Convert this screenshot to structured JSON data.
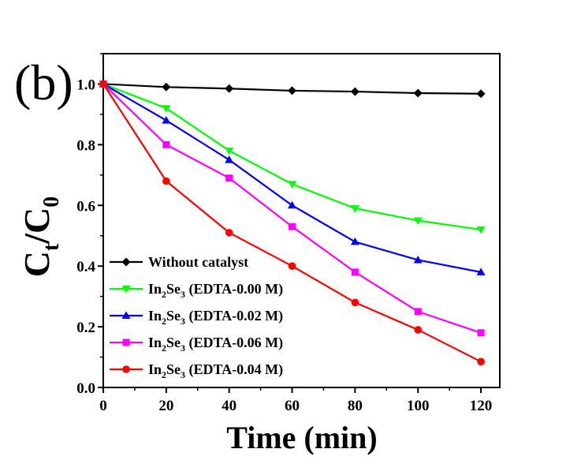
{
  "chart_data": {
    "type": "line",
    "panel_label": "(b)",
    "xlabel": "Time (min)",
    "ylabel": {
      "main": "C",
      "sub1": "t",
      "slash": "/",
      "main2": "C",
      "sub2": "0"
    },
    "xlim": [
      0,
      126
    ],
    "ylim": [
      0,
      1.1
    ],
    "xticks": [
      0,
      20,
      40,
      60,
      80,
      100,
      120
    ],
    "yticks": [
      0.0,
      0.2,
      0.4,
      0.6,
      0.8,
      1.0
    ],
    "xtick_labels": [
      "0",
      "20",
      "40",
      "60",
      "80",
      "100",
      "120"
    ],
    "ytick_labels": [
      "0.0",
      "0.2",
      "0.4",
      "0.6",
      "0.8",
      "1.0"
    ],
    "x": [
      0,
      20,
      40,
      60,
      80,
      100,
      120
    ],
    "legend_position": "lower-left",
    "series": [
      {
        "name": "Without catalyst",
        "color": "#000000",
        "marker": "diamond",
        "values": [
          1.0,
          0.99,
          0.985,
          0.978,
          0.975,
          0.97,
          0.968
        ]
      },
      {
        "name": "In2Se3 (EDTA-0.00 M)",
        "name_parts": [
          "In",
          "2",
          "Se",
          "3",
          " (EDTA-0.00 M)"
        ],
        "color": "#00ff00",
        "marker": "triangle-down",
        "values": [
          1.0,
          0.92,
          0.78,
          0.67,
          0.59,
          0.55,
          0.52
        ]
      },
      {
        "name": "In2Se3 (EDTA-0.02 M)",
        "name_parts": [
          "In",
          "2",
          "Se",
          "3",
          " (EDTA-0.02 M)"
        ],
        "color": "#0000ff",
        "marker": "triangle-up",
        "values": [
          1.0,
          0.88,
          0.75,
          0.6,
          0.48,
          0.42,
          0.38
        ]
      },
      {
        "name": "In2Se3 (EDTA-0.06 M)",
        "name_parts": [
          "In",
          "2",
          "Se",
          "3",
          " (EDTA-0.06 M)"
        ],
        "color": "#ff00ff",
        "marker": "square",
        "values": [
          1.0,
          0.8,
          0.69,
          0.53,
          0.38,
          0.25,
          0.18
        ]
      },
      {
        "name": "In2Se3 (EDTA-0.04 M)",
        "name_parts": [
          "In",
          "2",
          "Se",
          "3",
          " (EDTA-0.04 M)"
        ],
        "color": "#ff0000",
        "marker": "circle",
        "values": [
          1.0,
          0.68,
          0.51,
          0.4,
          0.28,
          0.19,
          0.085
        ]
      }
    ]
  }
}
